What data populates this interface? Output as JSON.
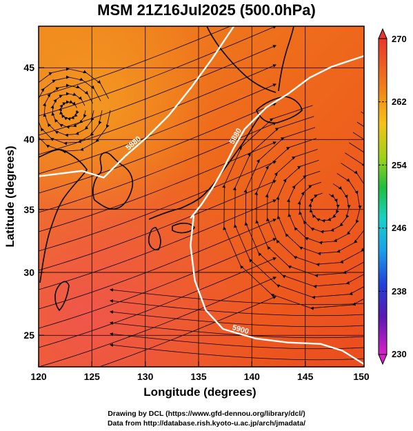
{
  "title": "MSM 21Z16Jul2025 (500.0hPa)",
  "axes": {
    "xlabel": "Longitude (degrees)",
    "ylabel": "Latitude  (degrees)",
    "xticks": [
      "120",
      "125",
      "130",
      "135",
      "140",
      "145",
      "150"
    ],
    "yticks": [
      "25",
      "30",
      "35",
      "40",
      "45"
    ],
    "xlim": [
      120,
      150
    ],
    "ylim": [
      22.4,
      47.6
    ]
  },
  "colorbar": {
    "range": [
      230,
      270
    ],
    "labels": [
      "270",
      "262",
      "254",
      "246",
      "238",
      "230"
    ]
  },
  "contours": [
    {
      "label": "5880",
      "points": [
        [
          120,
          36.5
        ],
        [
          124,
          36.9
        ],
        [
          126,
          36.4
        ],
        [
          128,
          38.0
        ],
        [
          130,
          39.4
        ],
        [
          132,
          41.0
        ],
        [
          134,
          43.0
        ],
        [
          136,
          45.2
        ],
        [
          138,
          47.6
        ]
      ]
    },
    {
      "label": "5880",
      "points": [
        [
          134,
          33.4
        ],
        [
          135,
          34.4
        ],
        [
          136,
          35.6
        ],
        [
          137,
          37.0
        ],
        [
          138,
          38.6
        ],
        [
          139,
          40.0
        ],
        [
          141,
          41.6
        ],
        [
          143,
          42.6
        ],
        [
          145,
          43.8
        ],
        [
          147,
          44.6
        ],
        [
          150,
          45.4
        ]
      ]
    },
    {
      "label": "5900",
      "points": [
        [
          134.3,
          33.6
        ],
        [
          134,
          31.4
        ],
        [
          134.4,
          28.8
        ],
        [
          135.4,
          26.6
        ],
        [
          137,
          25.2
        ],
        [
          140,
          24.5
        ],
        [
          143,
          24.2
        ],
        [
          146,
          24.1
        ],
        [
          148,
          23.6
        ],
        [
          150,
          22.6
        ]
      ]
    }
  ],
  "credit": {
    "line1": "Drawing by DCL (https://www.gfd-dennou.org/library/dcl/)",
    "line2": "Data from http://database.rish.kyoto-u.ac.jp/arch/jmadata/"
  },
  "colors": {
    "shading_warm": "#ef5a1c",
    "shading_orange": "#f08a1e",
    "contour": "#ffffff"
  }
}
